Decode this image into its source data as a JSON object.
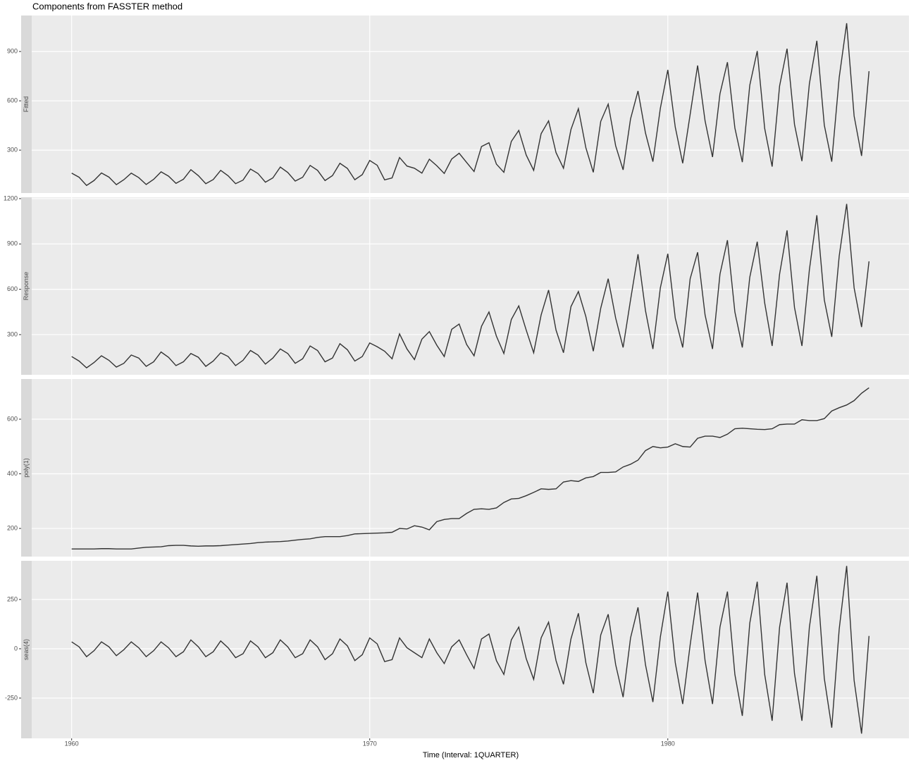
{
  "chart_data": {
    "type": "line",
    "title": "Components from FASSTER method",
    "xlabel": "Time (Interval: 1QUARTER)",
    "color": "#333333",
    "grid": true,
    "xlim": [
      1958.66,
      1988.09
    ],
    "xticks": [
      1960,
      1970,
      1980
    ],
    "x": [
      1960,
      1960.25,
      1960.5,
      1960.75,
      1961,
      1961.25,
      1961.5,
      1961.75,
      1962,
      1962.25,
      1962.5,
      1962.75,
      1963,
      1963.25,
      1963.5,
      1963.75,
      1964,
      1964.25,
      1964.5,
      1964.75,
      1965,
      1965.25,
      1965.5,
      1965.75,
      1966,
      1966.25,
      1966.5,
      1966.75,
      1967,
      1967.25,
      1967.5,
      1967.75,
      1968,
      1968.25,
      1968.5,
      1968.75,
      1969,
      1969.25,
      1969.5,
      1969.75,
      1970,
      1970.25,
      1970.5,
      1970.75,
      1971,
      1971.25,
      1971.5,
      1971.75,
      1972,
      1972.25,
      1972.5,
      1972.75,
      1973,
      1973.25,
      1973.5,
      1973.75,
      1974,
      1974.25,
      1974.5,
      1974.75,
      1975,
      1975.25,
      1975.5,
      1975.75,
      1976,
      1976.25,
      1976.5,
      1976.75,
      1977,
      1977.25,
      1977.5,
      1977.75,
      1978,
      1978.25,
      1978.5,
      1978.75,
      1979,
      1979.25,
      1979.5,
      1979.75,
      1980,
      1980.25,
      1980.5,
      1980.75,
      1981,
      1981.25,
      1981.5,
      1981.75,
      1982,
      1982.25,
      1982.5,
      1982.75,
      1983,
      1983.25,
      1983.5,
      1983.75,
      1984,
      1984.25,
      1984.5,
      1984.75,
      1985,
      1985.25,
      1985.5,
      1985.75,
      1986,
      1986.25,
      1986.5,
      1986.75
    ],
    "facets": [
      {
        "label": "Fitted",
        "ylim": [
          39,
          1119
        ],
        "yticks": [
          300,
          600,
          900
        ],
        "values": [
          160,
          135,
          85,
          115,
          161,
          136,
          90,
          120,
          160,
          133,
          91,
          122,
          168,
          142,
          98,
          123,
          181,
          145,
          96,
          121,
          177,
          144,
          96,
          118,
          185,
          158,
          105,
          131,
          197,
          164,
          112,
          135,
          207,
          177,
          115,
          145,
          220,
          189,
          120,
          151,
          237,
          208,
          119,
          131,
          255,
          203,
          190,
          160,
          245,
          205,
          158,
          246,
          281,
          225,
          170,
          322,
          345,
          215,
          165,
          353,
          420,
          270,
          177,
          400,
          478,
          285,
          190,
          425,
          552,
          315,
          165,
          475,
          580,
          327,
          180,
          490,
          660,
          405,
          230,
          555,
          788,
          440,
          220,
          518,
          815,
          478,
          258,
          643,
          835,
          435,
          227,
          695,
          903,
          432,
          200,
          690,
          917,
          457,
          233,
          705,
          965,
          452,
          230,
          742,
          1072,
          508,
          265,
          780
        ]
      },
      {
        "label": "Response",
        "ylim": [
          34,
          1209
        ],
        "yticks": [
          300,
          600,
          900,
          1200
        ],
        "values": [
          155,
          125,
          80,
          115,
          160,
          130,
          85,
          110,
          165,
          145,
          90,
          120,
          185,
          150,
          95,
          120,
          175,
          150,
          90,
          125,
          180,
          155,
          95,
          130,
          195,
          165,
          105,
          145,
          205,
          175,
          110,
          140,
          225,
          195,
          120,
          145,
          240,
          200,
          125,
          155,
          245,
          220,
          190,
          140,
          305,
          205,
          135,
          270,
          320,
          230,
          155,
          335,
          370,
          235,
          160,
          355,
          450,
          290,
          175,
          400,
          490,
          330,
          180,
          430,
          595,
          330,
          180,
          485,
          585,
          420,
          190,
          475,
          670,
          410,
          215,
          530,
          832,
          460,
          205,
          610,
          835,
          410,
          215,
          670,
          845,
          430,
          205,
          700,
          925,
          450,
          215,
          680,
          915,
          510,
          225,
          700,
          990,
          480,
          225,
          730,
          1090,
          530,
          285,
          820,
          1165,
          610,
          350,
          785
        ]
      },
      {
        "label": "poly(1)",
        "ylim": [
          97,
          747
        ],
        "yticks": [
          200,
          400,
          600
        ],
        "values": [
          125,
          125,
          125,
          125,
          126,
          126,
          125,
          125,
          125,
          128,
          131,
          132,
          133,
          137,
          138,
          138,
          136,
          135,
          136,
          136,
          137,
          139,
          141,
          143,
          145,
          148,
          150,
          151,
          152,
          154,
          157,
          160,
          162,
          167,
          170,
          170,
          170,
          174,
          180,
          181,
          182,
          183,
          184,
          186,
          200,
          198,
          210,
          205,
          195,
          225,
          233,
          236,
          236,
          255,
          270,
          272,
          270,
          275,
          295,
          308,
          310,
          320,
          332,
          345,
          343,
          345,
          370,
          375,
          372,
          385,
          390,
          405,
          405,
          407,
          425,
          435,
          450,
          485,
          500,
          495,
          498,
          510,
          500,
          498,
          530,
          538,
          538,
          533,
          545,
          565,
          567,
          565,
          563,
          562,
          565,
          580,
          582,
          582,
          598,
          595,
          595,
          602,
          630,
          642,
          652,
          668,
          695,
          715
        ]
      },
      {
        "label": "seas(4)",
        "ylim": [
          -454,
          446
        ],
        "yticks": [
          -250,
          0,
          250
        ],
        "values": [
          35,
          10,
          -40,
          -10,
          35,
          10,
          -35,
          -5,
          35,
          5,
          -40,
          -10,
          35,
          5,
          -40,
          -15,
          45,
          10,
          -40,
          -15,
          40,
          5,
          -45,
          -25,
          40,
          10,
          -45,
          -20,
          45,
          10,
          -45,
          -25,
          45,
          10,
          -55,
          -25,
          50,
          15,
          -60,
          -30,
          55,
          25,
          -65,
          -55,
          55,
          5,
          -20,
          -45,
          50,
          -20,
          -75,
          10,
          45,
          -30,
          -100,
          50,
          75,
          -60,
          -130,
          45,
          110,
          -50,
          -155,
          55,
          135,
          -60,
          -180,
          50,
          180,
          -70,
          -225,
          70,
          175,
          -80,
          -245,
          55,
          210,
          -80,
          -270,
          60,
          290,
          -70,
          -280,
          20,
          285,
          -60,
          -280,
          110,
          290,
          -130,
          -340,
          130,
          340,
          -130,
          -365,
          110,
          335,
          -125,
          -365,
          110,
          370,
          -150,
          -400,
          100,
          420,
          -160,
          -430,
          65
        ]
      }
    ]
  }
}
